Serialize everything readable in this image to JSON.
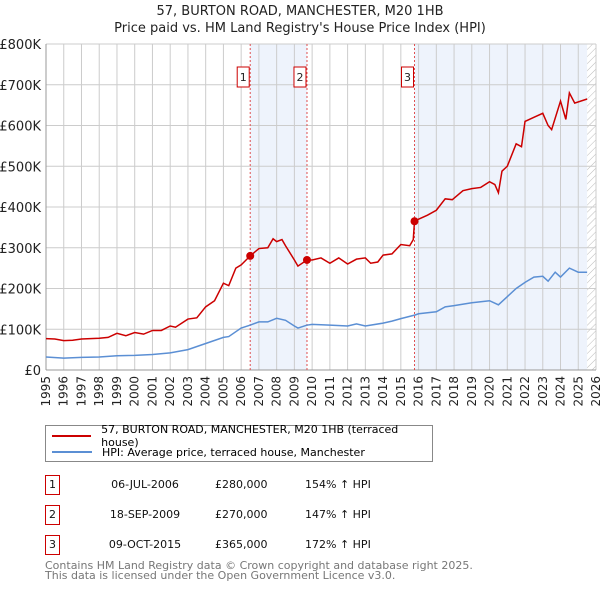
{
  "title": "57, BURTON ROAD, MANCHESTER, M20 1HB",
  "subtitle": "Price paid vs. HM Land Registry's House Price Index (HPI)",
  "chart_data": {
    "type": "line",
    "ylim": [
      0,
      800000
    ],
    "xlim": [
      1995,
      2026
    ],
    "yticks": [
      {
        "v": 0,
        "label": "£0"
      },
      {
        "v": 100000,
        "label": "£100K"
      },
      {
        "v": 200000,
        "label": "£200K"
      },
      {
        "v": 300000,
        "label": "£300K"
      },
      {
        "v": 400000,
        "label": "£400K"
      },
      {
        "v": 500000,
        "label": "£500K"
      },
      {
        "v": 600000,
        "label": "£600K"
      },
      {
        "v": 700000,
        "label": "£700K"
      },
      {
        "v": 800000,
        "label": "£800K"
      }
    ],
    "xticks": [
      1995,
      1996,
      1997,
      1998,
      1999,
      2000,
      2001,
      2002,
      2003,
      2004,
      2005,
      2006,
      2007,
      2008,
      2009,
      2010,
      2011,
      2012,
      2013,
      2014,
      2015,
      2016,
      2017,
      2018,
      2019,
      2020,
      2021,
      2022,
      2023,
      2024,
      2025,
      2026
    ],
    "shaded_ranges": [
      [
        2006.51,
        2009.71
      ],
      [
        2015.77,
        2025.5
      ]
    ],
    "hatched_from": 2025.5,
    "series": [
      {
        "name": "57, BURTON ROAD, MANCHESTER, M20 1HB (terraced house)",
        "color": "#cc0000",
        "points": [
          [
            1995,
            77000
          ],
          [
            1995.5,
            76000
          ],
          [
            1996,
            72000
          ],
          [
            1996.5,
            73000
          ],
          [
            1997,
            76000
          ],
          [
            1998,
            78000
          ],
          [
            1998.5,
            80000
          ],
          [
            1999,
            90000
          ],
          [
            1999.5,
            84000
          ],
          [
            2000,
            92000
          ],
          [
            2000.5,
            88000
          ],
          [
            2001,
            97000
          ],
          [
            2001.5,
            97000
          ],
          [
            2002,
            108000
          ],
          [
            2002.3,
            105000
          ],
          [
            2003,
            125000
          ],
          [
            2003.5,
            128000
          ],
          [
            2004,
            155000
          ],
          [
            2004.5,
            170000
          ],
          [
            2005,
            213000
          ],
          [
            2005.3,
            207000
          ],
          [
            2005.7,
            250000
          ],
          [
            2006,
            258000
          ],
          [
            2006.51,
            280000
          ],
          [
            2007,
            298000
          ],
          [
            2007.5,
            300000
          ],
          [
            2007.8,
            322000
          ],
          [
            2008,
            315000
          ],
          [
            2008.3,
            320000
          ],
          [
            2008.5,
            305000
          ],
          [
            2009,
            270000
          ],
          [
            2009.2,
            255000
          ],
          [
            2009.71,
            270000
          ],
          [
            2010,
            270000
          ],
          [
            2010.5,
            275000
          ],
          [
            2011,
            262000
          ],
          [
            2011.5,
            275000
          ],
          [
            2012,
            260000
          ],
          [
            2012.5,
            272000
          ],
          [
            2013,
            275000
          ],
          [
            2013.3,
            262000
          ],
          [
            2013.7,
            265000
          ],
          [
            2014,
            282000
          ],
          [
            2014.5,
            285000
          ],
          [
            2015,
            308000
          ],
          [
            2015.5,
            305000
          ],
          [
            2015.7,
            320000
          ],
          [
            2015.77,
            365000
          ],
          [
            2016,
            370000
          ],
          [
            2016.5,
            380000
          ],
          [
            2017,
            392000
          ],
          [
            2017.5,
            420000
          ],
          [
            2017.9,
            418000
          ],
          [
            2018.5,
            440000
          ],
          [
            2019,
            445000
          ],
          [
            2019.5,
            448000
          ],
          [
            2020,
            462000
          ],
          [
            2020.3,
            455000
          ],
          [
            2020.5,
            435000
          ],
          [
            2020.7,
            488000
          ],
          [
            2021,
            500000
          ],
          [
            2021.5,
            555000
          ],
          [
            2021.8,
            548000
          ],
          [
            2022,
            610000
          ],
          [
            2022.5,
            620000
          ],
          [
            2023,
            630000
          ],
          [
            2023.3,
            600000
          ],
          [
            2023.5,
            590000
          ],
          [
            2024,
            660000
          ],
          [
            2024.3,
            615000
          ],
          [
            2024.5,
            680000
          ],
          [
            2024.8,
            655000
          ],
          [
            2025.5,
            665000
          ]
        ]
      },
      {
        "name": "HPI: Average price, terraced house, Manchester",
        "color": "#5b8fd4",
        "points": [
          [
            1995,
            32000
          ],
          [
            1996,
            29000
          ],
          [
            1997,
            31000
          ],
          [
            1998,
            32000
          ],
          [
            1999,
            35000
          ],
          [
            2000,
            36000
          ],
          [
            2001,
            38000
          ],
          [
            2002,
            42000
          ],
          [
            2003,
            50000
          ],
          [
            2004,
            65000
          ],
          [
            2005,
            80000
          ],
          [
            2005.3,
            82000
          ],
          [
            2006,
            103000
          ],
          [
            2006.5,
            110000
          ],
          [
            2007,
            118000
          ],
          [
            2007.5,
            118000
          ],
          [
            2008,
            127000
          ],
          [
            2008.5,
            122000
          ],
          [
            2009,
            108000
          ],
          [
            2009.2,
            103000
          ],
          [
            2009.7,
            110000
          ],
          [
            2010,
            112000
          ],
          [
            2011,
            110000
          ],
          [
            2012,
            108000
          ],
          [
            2012.5,
            113000
          ],
          [
            2013,
            108000
          ],
          [
            2014,
            115000
          ],
          [
            2014.5,
            120000
          ],
          [
            2015,
            126000
          ],
          [
            2015.8,
            135000
          ],
          [
            2016,
            138000
          ],
          [
            2017,
            143000
          ],
          [
            2017.5,
            155000
          ],
          [
            2018,
            158000
          ],
          [
            2019,
            165000
          ],
          [
            2020,
            170000
          ],
          [
            2020.5,
            160000
          ],
          [
            2021,
            180000
          ],
          [
            2021.5,
            200000
          ],
          [
            2022,
            215000
          ],
          [
            2022.5,
            228000
          ],
          [
            2023,
            230000
          ],
          [
            2023.3,
            218000
          ],
          [
            2023.7,
            240000
          ],
          [
            2024,
            228000
          ],
          [
            2024.5,
            250000
          ],
          [
            2025,
            240000
          ],
          [
            2025.5,
            240000
          ]
        ]
      }
    ],
    "sales": [
      {
        "id": "1",
        "x": 2006.51,
        "y": 280000
      },
      {
        "id": "2",
        "x": 2009.71,
        "y": 270000
      },
      {
        "id": "3",
        "x": 2015.77,
        "y": 365000
      }
    ]
  },
  "legend": {
    "red": "57, BURTON ROAD, MANCHESTER, M20 1HB (terraced house)",
    "blue": "HPI: Average price, terraced house, Manchester"
  },
  "transactions": [
    {
      "id": "1",
      "date": "06-JUL-2006",
      "price": "£280,000",
      "hpi": "154% ↑ HPI"
    },
    {
      "id": "2",
      "date": "18-SEP-2009",
      "price": "£270,000",
      "hpi": "147% ↑ HPI"
    },
    {
      "id": "3",
      "date": "09-OCT-2015",
      "price": "£365,000",
      "hpi": "172% ↑ HPI"
    }
  ],
  "footer": [
    "Contains HM Land Registry data © Crown copyright and database right 2025.",
    "This data is licensed under the Open Government Licence v3.0."
  ]
}
